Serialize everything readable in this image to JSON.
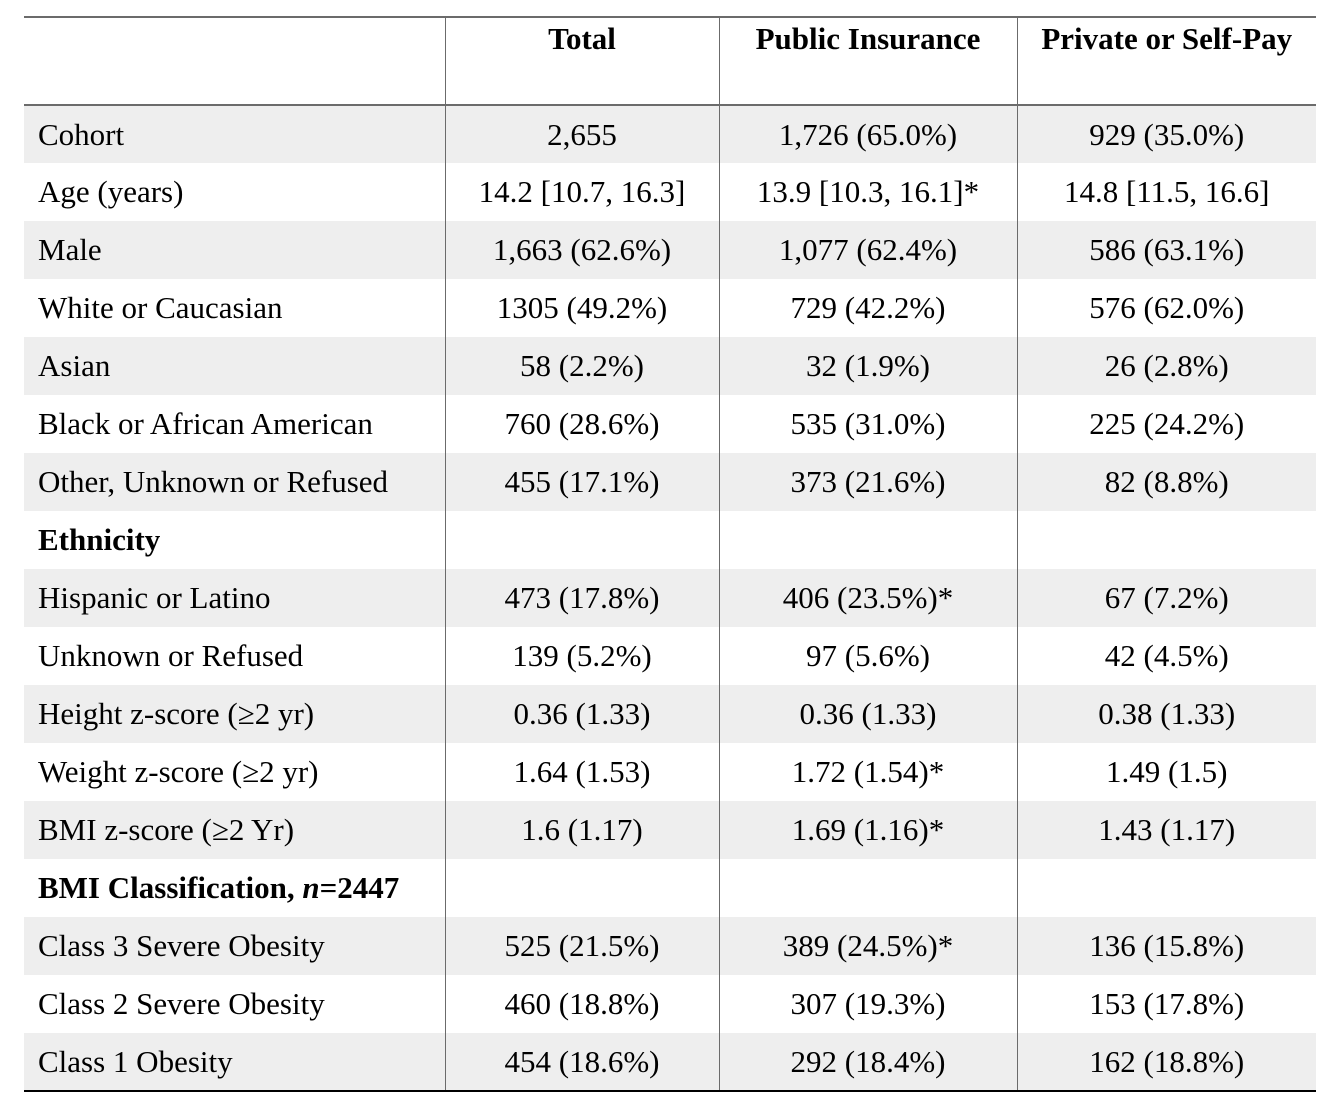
{
  "table": {
    "headers": [
      "",
      "Total",
      "Public Insurance",
      "Private or Self-Pay"
    ],
    "rows": [
      {
        "label": "Cohort",
        "total": "2,655",
        "public": "1,726 (65.0%)",
        "private": "929 (35.0%)"
      },
      {
        "label": "Age (years)",
        "total": "14.2 [10.7, 16.3]",
        "public": "13.9 [10.3, 16.1]*",
        "private": "14.8 [11.5, 16.6]"
      },
      {
        "label": "Male",
        "total": "1,663 (62.6%)",
        "public": "1,077 (62.4%)",
        "private": "586 (63.1%)"
      },
      {
        "label": "White or Caucasian",
        "total": "1305 (49.2%)",
        "public": "729 (42.2%)",
        "private": "576 (62.0%)"
      },
      {
        "label": "Asian",
        "total": "58 (2.2%)",
        "public": "32 (1.9%)",
        "private": "26 (2.8%)"
      },
      {
        "label": "Black or African American",
        "total": "760 (28.6%)",
        "public": "535 (31.0%)",
        "private": "225 (24.2%)"
      },
      {
        "label": "Other, Unknown or Refused",
        "total": "455 (17.1%)",
        "public": "373 (21.6%)",
        "private": "82 (8.8%)"
      },
      {
        "label": "Ethnicity",
        "total": "",
        "public": "",
        "private": ""
      },
      {
        "label": "Hispanic or Latino",
        "total": "473 (17.8%)",
        "public": "406 (23.5%)*",
        "private": "67 (7.2%)"
      },
      {
        "label": "Unknown or Refused",
        "total": "139 (5.2%)",
        "public": "97 (5.6%)",
        "private": "42 (4.5%)"
      },
      {
        "label": "Height z-score (≥2 yr)",
        "total": "0.36 (1.33)",
        "public": "0.36 (1.33)",
        "private": "0.38 (1.33)"
      },
      {
        "label": "Weight z-score (≥2 yr)",
        "total": "1.64 (1.53)",
        "public": "1.72 (1.54)*",
        "private": "1.49 (1.5)"
      },
      {
        "label": "BMI z-score (≥2 Yr)",
        "total": "1.6 (1.17)",
        "public": "1.69 (1.16)*",
        "private": "1.43 (1.17)"
      },
      {
        "label": "BMI Classification, ",
        "label_italic": "n",
        "label_suffix": "=2447",
        "total": "",
        "public": "",
        "private": ""
      },
      {
        "label": "Class 3 Severe Obesity",
        "total": "525 (21.5%)",
        "public": "389 (24.5%)*",
        "private": "136 (15.8%)"
      },
      {
        "label": "Class 2 Severe Obesity",
        "total": "460 (18.8%)",
        "public": "307 (19.3%)",
        "private": "153 (17.8%)"
      },
      {
        "label": "Class 1 Obesity",
        "total": "454 (18.6%)",
        "public": "292 (18.4%)",
        "private": "162 (18.8%)"
      }
    ]
  }
}
